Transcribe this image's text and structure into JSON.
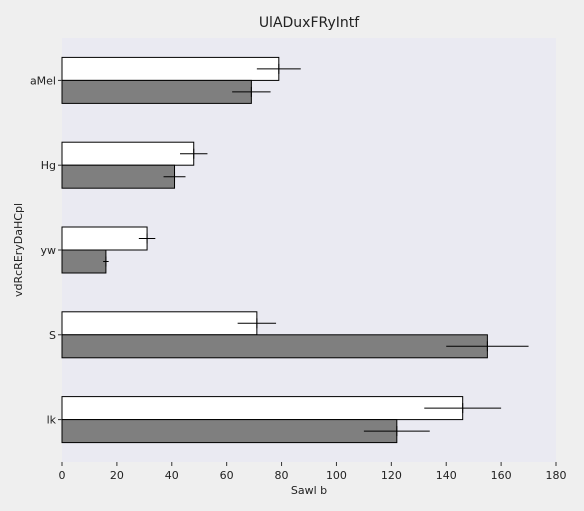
{
  "chart_data": {
    "type": "bar",
    "orientation": "horizontal",
    "title": "UlADuxFRyIntf",
    "xlabel": "Sawl b",
    "ylabel": "vdRcREryDaHCpl",
    "categories": [
      "aMel",
      "Hg",
      "yw",
      "S",
      "lk"
    ],
    "series": [
      {
        "color": "#ffffff",
        "values": [
          79,
          48,
          31,
          71,
          146
        ],
        "errors": [
          8,
          5,
          3,
          7,
          14
        ]
      },
      {
        "color": "#7f7f7f",
        "values": [
          69,
          41,
          16,
          155,
          122
        ],
        "errors": [
          7,
          4,
          1,
          15,
          12
        ]
      }
    ],
    "xlim": [
      0,
      180
    ],
    "xticks": [
      0,
      20,
      40,
      60,
      80,
      100,
      120,
      140,
      160,
      180
    ],
    "grid": false,
    "legend": "none",
    "background": "#eaeaf2"
  }
}
